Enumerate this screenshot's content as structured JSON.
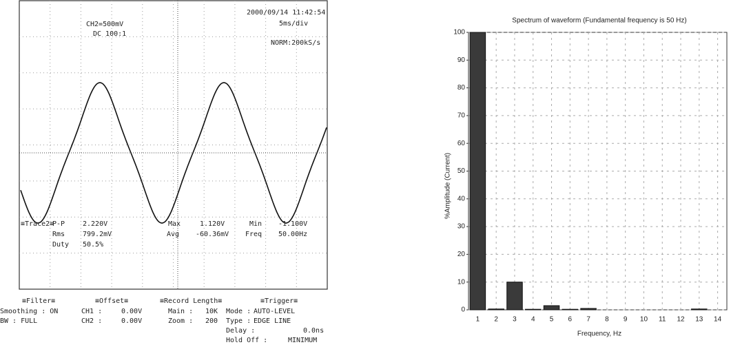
{
  "oscilloscope": {
    "channel": "CH2=500mV",
    "coupling": "DC 100:1",
    "timestamp": "2000/09/14 11:42:54",
    "timebase": "5ms/div",
    "mode": "NORM:200kS/s",
    "trace_label": "≡Trace2≡",
    "measurements": [
      [
        "P-P",
        "2.220V"
      ],
      [
        "Rms",
        "799.2mV"
      ],
      [
        "Duty",
        "50.5%"
      ],
      [
        "Max",
        "1.120V"
      ],
      [
        "Avg",
        "-60.36mV"
      ],
      [
        "Min",
        "-1.100V"
      ],
      [
        "Freq",
        "50.00Hz"
      ]
    ],
    "filter": {
      "title": "≡Filter≡",
      "rows": [
        "Smoothing : ON",
        "BW : FULL"
      ]
    },
    "offset": {
      "title": "≡Offset≡",
      "rows": [
        [
          "CH1 :",
          "0.00V"
        ],
        [
          "CH2 :",
          "0.00V"
        ]
      ]
    },
    "record_length": {
      "title": "≡Record Length≡",
      "rows": [
        [
          "Main :",
          "10K"
        ],
        [
          "Zoom :",
          "200"
        ]
      ]
    },
    "trigger": {
      "title": "≡Trigger≡",
      "rows": [
        [
          "Mode :",
          "AUTO-LEVEL"
        ],
        [
          "Type :",
          "EDGE LINE"
        ],
        [
          "Delay :",
          "0.0ns"
        ],
        [
          "Hold Off :",
          "MINIMUM"
        ]
      ]
    }
  },
  "chart_data": {
    "type": "bar",
    "title": "Spectrum of waveform (Fundamental frequency is 50 Hz)",
    "x_label": "Frequency, Hz",
    "y_label": "%Amplitude (Current)",
    "categories": [
      "1",
      "2",
      "3",
      "4",
      "5",
      "6",
      "7",
      "8",
      "9",
      "10",
      "11",
      "12",
      "13",
      "14"
    ],
    "values": [
      100,
      0.3,
      10,
      0.2,
      1.5,
      0.2,
      0.5,
      0,
      0,
      0,
      0,
      0,
      0.3,
      0
    ],
    "color": "#3a3a3a",
    "ylim": [
      0,
      100
    ],
    "yticks": [
      0,
      10,
      20,
      30,
      40,
      50,
      60,
      70,
      80,
      90,
      100
    ],
    "grid": true
  }
}
